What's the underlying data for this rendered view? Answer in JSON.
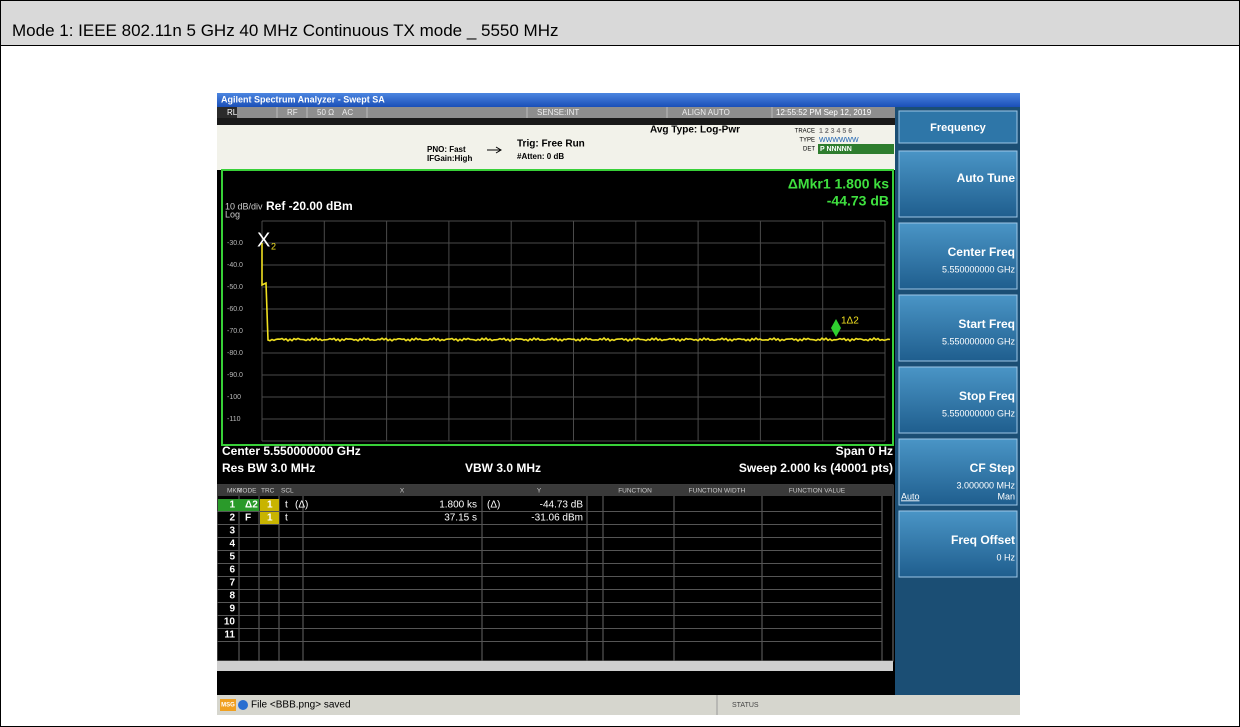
{
  "header": {
    "title": "Mode 1: IEEE 802.11n 5 GHz 40 MHz Continuous TX mode _ 5550 MHz"
  },
  "screen": {
    "title_bar": "Agilent Spectrum Analyzer - Swept SA",
    "status_bar": {
      "rl": "RL",
      "rf": "RF",
      "impedance": "50 Ω",
      "coupling": "AC",
      "sense": "SENSE:INT",
      "align": "ALIGN AUTO",
      "datetime": "12:55:52 PM Sep 12, 2019"
    },
    "settings": {
      "pno": "PNO: Fast",
      "ifgain": "IFGain:High",
      "trig": "Trig: Free Run",
      "atten": "#Atten: 0 dB",
      "avg": "Avg Type: Log-Pwr",
      "trace_label": "TRACE",
      "trace_nums": "1 2 3 4 5 6",
      "type_label": "TYPE",
      "type_value": "WWWWWW",
      "det_label": "DET",
      "det_value": "P NNNNN"
    },
    "graph": {
      "scale": "10 dB/div",
      "scale_type": "Log",
      "ref": "Ref -20.00 dBm",
      "marker_readout": "ΔMkr1 1.800 ks",
      "marker_value": "-44.73 dB",
      "y_labels": [
        "-30.0",
        "-40.0",
        "-50.0",
        "-60.0",
        "-70.0",
        "-80.0",
        "-90.0",
        "-100",
        "-110"
      ],
      "marker2_symbol": "X",
      "marker2_index": "2",
      "marker1_label": "1Δ2"
    },
    "footer": {
      "center": "Center 5.550000000 GHz",
      "span": "Span 0 Hz",
      "rbw": "Res BW 3.0 MHz",
      "vbw": "VBW 3.0 MHz",
      "sweep": "Sweep 2.000 ks (40001 pts)"
    },
    "marker_table": {
      "headers": [
        "MKR",
        "MODE",
        "TRC",
        "SCL",
        "X",
        "Y",
        "FUNCTION",
        "FUNCTION WIDTH",
        "FUNCTION VALUE"
      ],
      "rows": [
        {
          "mkr": "1",
          "mode": "Δ2",
          "trc": "1",
          "scl": "t",
          "scl_ref": "(Δ)",
          "x": "1.800 ks",
          "x_ref": "(Δ)",
          "y": "-44.73 dB"
        },
        {
          "mkr": "2",
          "mode": "F",
          "trc": "1",
          "scl": "t",
          "x": "37.15 s",
          "y": "-31.06 dBm"
        },
        {
          "mkr": "3"
        },
        {
          "mkr": "4"
        },
        {
          "mkr": "5"
        },
        {
          "mkr": "6"
        },
        {
          "mkr": "7"
        },
        {
          "mkr": "8"
        },
        {
          "mkr": "9"
        },
        {
          "mkr": "10"
        },
        {
          "mkr": "11"
        }
      ]
    },
    "message_bar": {
      "msg": "MSG",
      "text": "File <BBB.png> saved",
      "status": "STATUS"
    },
    "softkeys": {
      "menu": "Frequency",
      "items": [
        {
          "label": "Auto Tune"
        },
        {
          "label": "Center Freq",
          "value": "5.550000000 GHz"
        },
        {
          "label": "Start Freq",
          "value": "5.550000000 GHz"
        },
        {
          "label": "Stop Freq",
          "value": "5.550000000 GHz"
        },
        {
          "label": "CF Step",
          "value": "3.000000 MHz",
          "auto": "Auto",
          "man": "Man"
        },
        {
          "label": "Freq Offset",
          "value": "0 Hz"
        }
      ]
    }
  }
}
